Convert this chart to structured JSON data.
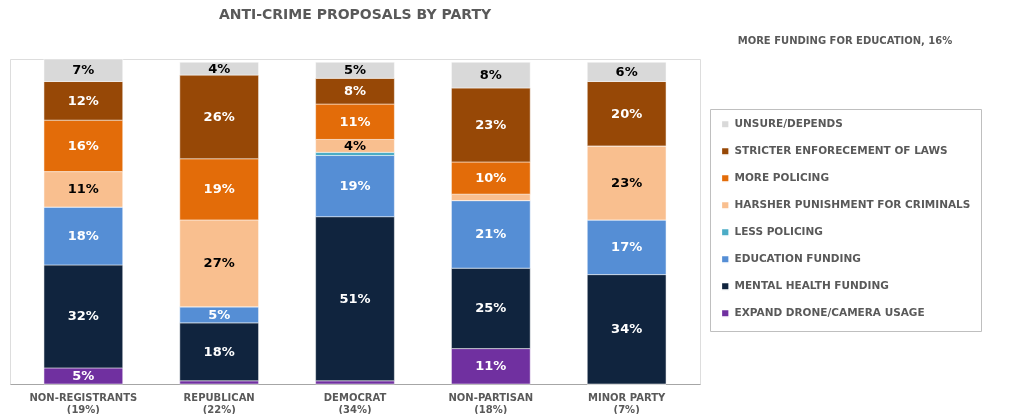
{
  "chart_data": {
    "type": "bar",
    "stacked": true,
    "title": "ANTI-CRIME PROPOSALS BY PARTY",
    "categories": [
      "NON-REGISTRANTS\n(19%)",
      "REPUBLICAN\n(22%)",
      "DEMOCRAT\n(34%)",
      "NON-PARTISAN\n(18%)",
      "MINOR PARTY\n(7%)"
    ],
    "series": [
      {
        "name": "EXPAND DRONE/CAMERA USAGE",
        "color": "#7030a0",
        "values": [
          5,
          1,
          1,
          11,
          0
        ],
        "value_labels": [
          "5%",
          null,
          null,
          "11%",
          null
        ]
      },
      {
        "name": "MENTAL HEALTH FUNDING",
        "color": "#10243e",
        "values": [
          32,
          18,
          51,
          25,
          34
        ],
        "value_labels": [
          "32%",
          "18%",
          "51%",
          "25%",
          "34%"
        ]
      },
      {
        "name": "EDUCATION FUNDING",
        "color": "#558ed5",
        "values": [
          18,
          5,
          19,
          21,
          17
        ],
        "value_labels": [
          "18%",
          "5%",
          "19%",
          "21%",
          "17%"
        ]
      },
      {
        "name": "LESS POLICING",
        "color": "#4bacc6",
        "values": [
          0,
          0,
          1,
          0,
          0
        ],
        "value_labels": [
          null,
          null,
          null,
          null,
          null
        ]
      },
      {
        "name": "HARSHER PUNISHMENT FOR CRIMINALS",
        "color": "#f9bf8f",
        "values": [
          11,
          27,
          4,
          2,
          23
        ],
        "value_labels": [
          "11%",
          "27%",
          "4%",
          null,
          "23%"
        ]
      },
      {
        "name": "MORE POLICING",
        "color": "#e36c09",
        "values": [
          16,
          19,
          11,
          10,
          0
        ],
        "value_labels": [
          "16%",
          "19%",
          "11%",
          "10%",
          null
        ]
      },
      {
        "name": "STRICTER ENFORECEMENT OF LAWS",
        "color": "#974806",
        "values": [
          12,
          26,
          8,
          23,
          20
        ],
        "value_labels": [
          "12%",
          "26%",
          "8%",
          "23%",
          "20%"
        ]
      },
      {
        "name": "UNSURE/DEPENDS",
        "color": "#d9d9d9",
        "values": [
          7,
          4,
          5,
          8,
          6
        ],
        "value_labels": [
          "7%",
          "4%",
          "5%",
          "8%",
          "6%"
        ]
      }
    ],
    "legend": "right",
    "annotations": [
      "MORE FUNDING FOR EDUCATION, 16%"
    ]
  }
}
